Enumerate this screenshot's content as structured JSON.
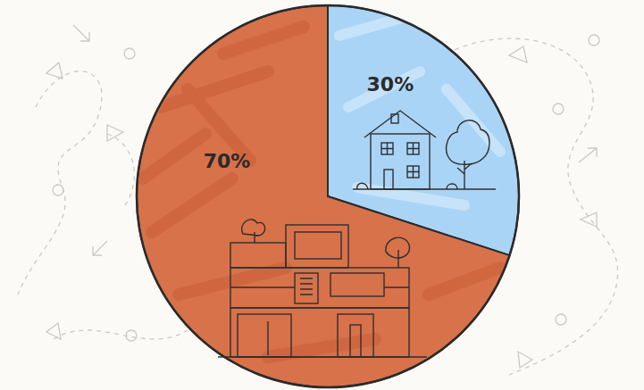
{
  "chart_data": {
    "type": "pie",
    "values": [
      30,
      70
    ],
    "value_labels": [
      "30%",
      "70%"
    ],
    "colors": [
      "#a9d4f6",
      "#d8724a"
    ],
    "data_labels": true
  }
}
